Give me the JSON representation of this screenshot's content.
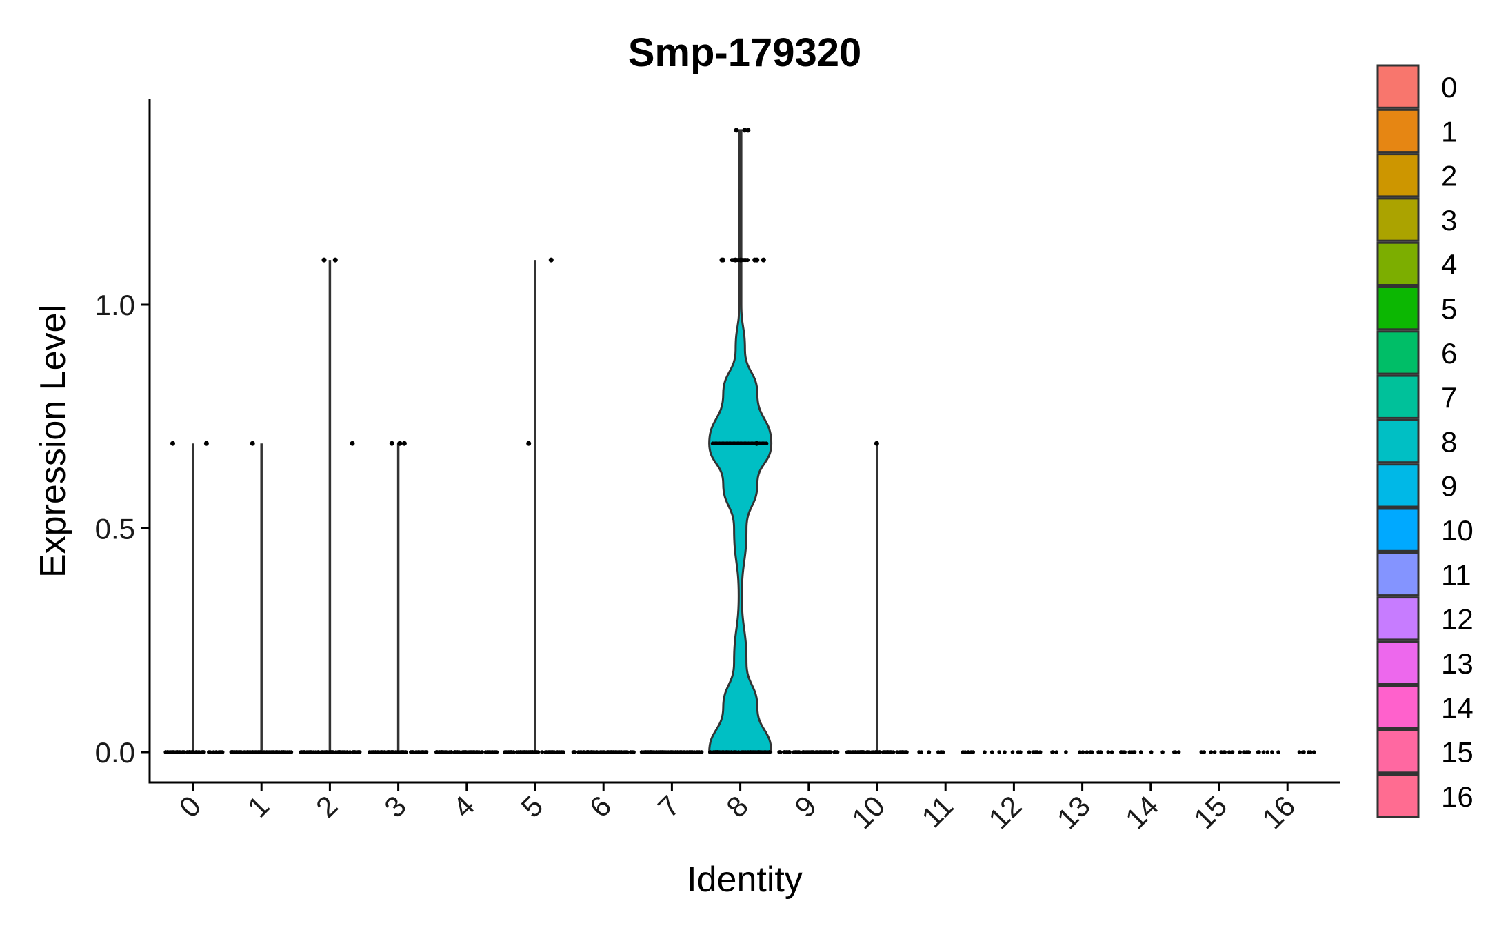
{
  "chart_data": {
    "type": "violin",
    "title": "Smp-179320",
    "xlabel": "Identity",
    "ylabel": "Expression Level",
    "ylim": [
      -0.07,
      1.47
    ],
    "y_ticks": [
      "0.0",
      "0.5",
      "1.0"
    ],
    "y_tick_values": [
      0.0,
      0.5,
      1.0
    ],
    "categories": [
      "0",
      "1",
      "2",
      "3",
      "4",
      "5",
      "6",
      "7",
      "8",
      "9",
      "10",
      "11",
      "12",
      "13",
      "14",
      "15",
      "16"
    ],
    "colors": [
      "#F8766D",
      "#E68613",
      "#CD9600",
      "#ABA300",
      "#7CAE00",
      "#0CB702",
      "#00BE67",
      "#00C19A",
      "#00BFC4",
      "#00B8E7",
      "#00A9FF",
      "#8494FF",
      "#C77CFF",
      "#ED68ED",
      "#FF61CC",
      "#FF68A1",
      "#FF6C91"
    ],
    "groups": [
      {
        "name": "0",
        "max": 0.69,
        "nonzero": [
          0.69,
          0.69
        ]
      },
      {
        "name": "1",
        "max": 0.69,
        "nonzero": [
          0.69
        ]
      },
      {
        "name": "2",
        "max": 1.1,
        "nonzero": [
          0.69,
          1.1,
          1.1
        ]
      },
      {
        "name": "3",
        "max": 0.69,
        "nonzero": [
          0.69,
          0.69,
          0.69,
          0.69
        ]
      },
      {
        "name": "4",
        "max": 0.0,
        "nonzero": []
      },
      {
        "name": "5",
        "max": 1.1,
        "nonzero": [
          0.69,
          1.1
        ]
      },
      {
        "name": "6",
        "max": 0.0,
        "nonzero": []
      },
      {
        "name": "7",
        "max": 0.0,
        "nonzero": []
      },
      {
        "name": "8",
        "max": 1.39,
        "nonzero": [
          1.39,
          1.39,
          1.39,
          1.1,
          1.1,
          1.1,
          1.1,
          1.1,
          1.1,
          1.1,
          0.69
        ],
        "violin": true
      },
      {
        "name": "9",
        "max": 0.0,
        "nonzero": []
      },
      {
        "name": "10",
        "max": 0.69,
        "nonzero": [
          0.69
        ]
      },
      {
        "name": "11",
        "max": 0.0,
        "nonzero": []
      },
      {
        "name": "12",
        "max": 0.0,
        "nonzero": []
      },
      {
        "name": "13",
        "max": 0.0,
        "nonzero": []
      },
      {
        "name": "14",
        "max": 0.0,
        "nonzero": []
      },
      {
        "name": "15",
        "max": 0.0,
        "nonzero": []
      },
      {
        "name": "16",
        "max": 0.0,
        "nonzero": []
      }
    ],
    "violin_density_8": [
      [
        0.0,
        1.0
      ],
      [
        0.1,
        0.55
      ],
      [
        0.2,
        0.2
      ],
      [
        0.35,
        0.05
      ],
      [
        0.5,
        0.2
      ],
      [
        0.6,
        0.55
      ],
      [
        0.69,
        1.0
      ],
      [
        0.8,
        0.55
      ],
      [
        0.9,
        0.15
      ],
      [
        1.0,
        0.03
      ],
      [
        1.1,
        0.02
      ],
      [
        1.25,
        0.03
      ],
      [
        1.39,
        0.02
      ]
    ],
    "legend_position": "right",
    "grid": false
  }
}
